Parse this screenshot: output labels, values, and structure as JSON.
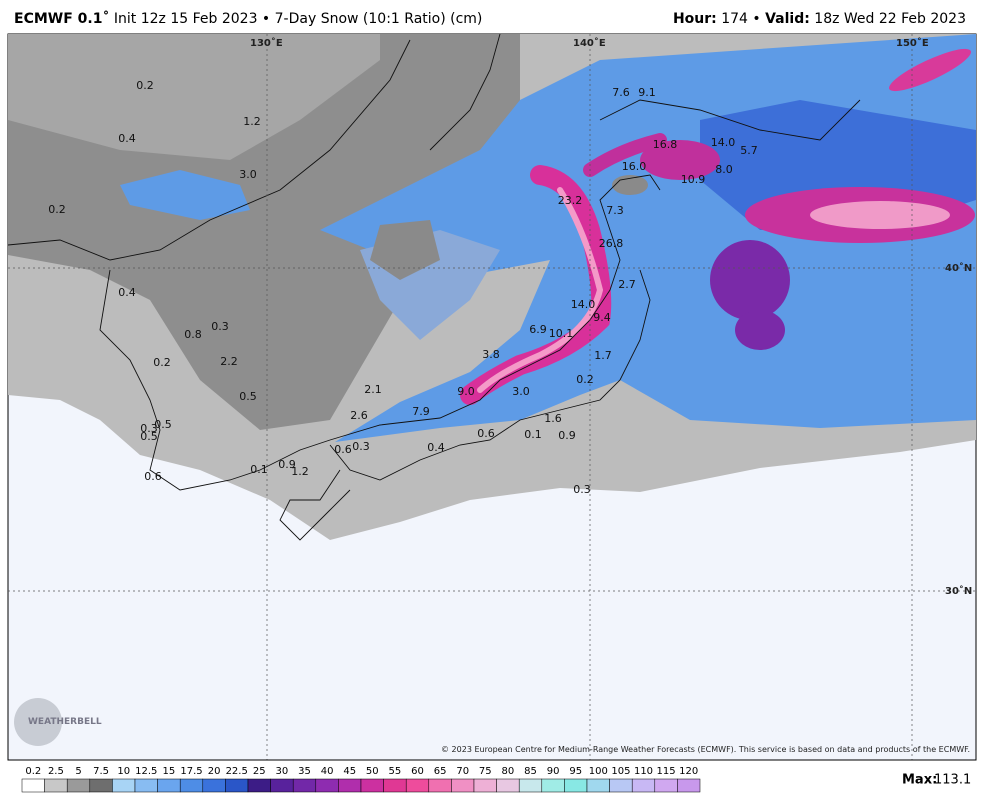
{
  "header": {
    "model": "ECMWF 0.1˚",
    "info": "Init 12z 15 Feb 2023 • 7-Day Snow (10:1 Ratio) (cm)",
    "hour_label": "Hour:",
    "hour": "174 •",
    "valid_label": "Valid:",
    "valid": "18z Wed 22 Feb 2023"
  },
  "map": {
    "grid_labels": [
      "130˚E",
      "140˚E",
      "150˚E",
      "40˚N",
      "30˚N"
    ],
    "point_labels": [
      "0.2",
      "0.4",
      "1.2",
      "3.0",
      "0.2",
      "0.4",
      "0.8",
      "0.3",
      "0.2",
      "2.2",
      "0.5",
      "0.5",
      "0.3",
      "0.5",
      "0.6",
      "0.1",
      "0.9",
      "1.2",
      "0.6",
      "0.3",
      "0.4",
      "2.6",
      "2.1",
      "7.9",
      "9.0",
      "3.8",
      "3.0",
      "0.1",
      "1.6",
      "0.9",
      "0.6",
      "0.2",
      "1.7",
      "0.3",
      "6.9",
      "10.1",
      "14.0",
      "9.4",
      "2.7",
      "26.8",
      "7.3",
      "23.2",
      "16.0",
      "16.8",
      "10.9",
      "14.0",
      "8.0",
      "5.7",
      "7.6",
      "9.1"
    ],
    "logo": "WEATHERBELL",
    "copyright": "© 2023 European Centre for Medium-Range Weather Forecasts (ECMWF). This service is based on data and products of the ECMWF."
  },
  "colorbar": {
    "ticks": [
      0.2,
      2.5,
      5,
      7.5,
      10,
      12.5,
      15,
      17.5,
      20,
      22.5,
      25,
      30,
      35,
      40,
      45,
      50,
      55,
      60,
      65,
      70,
      75,
      80,
      85,
      90,
      95,
      100,
      105,
      110,
      115,
      120
    ],
    "colors": [
      "#ffffff",
      "#c8c8c8",
      "#9a9a9a",
      "#6e6e6e",
      "#a8d4f5",
      "#88bcf2",
      "#6aa5ee",
      "#4e8de6",
      "#3a72dc",
      "#2a56c8",
      "#3c1c86",
      "#58229c",
      "#7228a8",
      "#8e2cb0",
      "#b02eac",
      "#cc30a0",
      "#e03894",
      "#ee4c9c",
      "#f070b0",
      "#f090c4",
      "#eeb0d6",
      "#e8c8e2",
      "#c8e8ec",
      "#a0ece6",
      "#88e8e4",
      "#a0d8ee",
      "#b8c8f4",
      "#c8b8f4",
      "#d0a8f0",
      "#c898ec"
    ],
    "max_label": "Max:",
    "max": 113.1
  }
}
